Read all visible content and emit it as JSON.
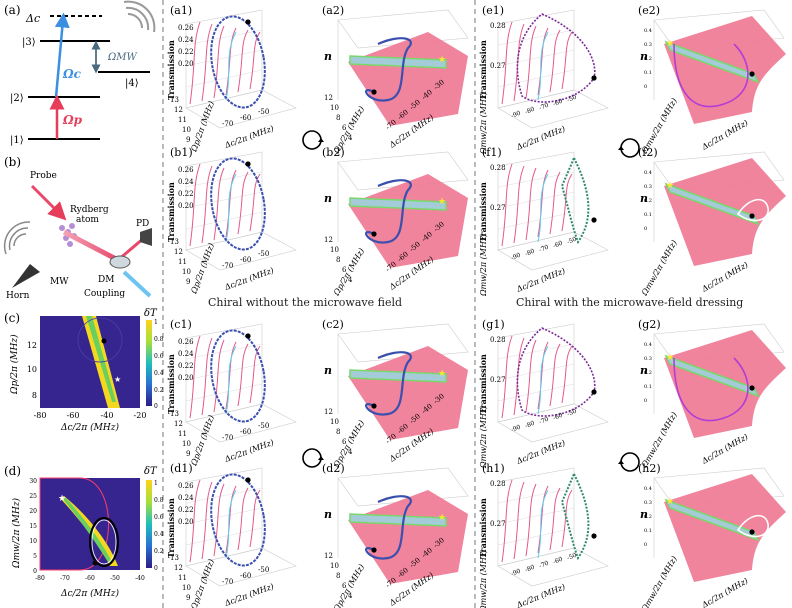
{
  "panel_labels": {
    "a": "(a)",
    "b": "(b)",
    "c": "(c)",
    "d": "(d)",
    "a1": "(a1)",
    "a2": "(a2)",
    "b1": "(b1)",
    "b2": "(b2)",
    "c1": "(c1)",
    "c2": "(c2)",
    "d1": "(d1)",
    "d2": "(d2)",
    "e1": "(e1)",
    "e2": "(e2)",
    "f1": "(f1)",
    "f2": "(f2)",
    "g1": "(g1)",
    "g2": "(g2)",
    "h1": "(h1)",
    "h2": "(h2)"
  },
  "level_diagram": {
    "levels": [
      "|1⟩",
      "|2⟩",
      "|3⟩",
      "|4⟩"
    ],
    "detuning": "Δc",
    "coupling": "Ωc",
    "probe": "Ωp",
    "microwave": "ΩMW"
  },
  "setup": {
    "probe": "Probe",
    "rydberg_line1": "Rydberg",
    "rydberg_line2": "atom",
    "pd": "PD",
    "dm": "DM",
    "mw": "MW",
    "horn": "Horn",
    "coupling": "Coupling"
  },
  "map_c": {
    "ylabel": "Ωp/2π (MHz)",
    "xlabel": "Δc/2π (MHz)",
    "yticks": [
      "12",
      "10",
      "8"
    ],
    "xticks": [
      "-80",
      "-60",
      "-40",
      "-20"
    ],
    "cbar_label": "δT",
    "cbar_ticks": [
      "1",
      "0.8",
      "0.6",
      "0.4",
      "0.2",
      "0"
    ]
  },
  "map_d": {
    "ylabel": "Ωmw/2π (MHz)",
    "xlabel": "Δc/2π (MHz)",
    "yticks": [
      "30",
      "25",
      "20",
      "15",
      "10",
      "5",
      "0"
    ],
    "xticks": [
      "-80",
      "-70",
      "-60",
      "-50",
      "-40"
    ],
    "cbar_label": "δT",
    "cbar_ticks": [
      "1",
      "0.8",
      "0.6",
      "0.4",
      "0.2",
      "0"
    ]
  },
  "left_group": {
    "ylabel1": "Transmission",
    "zticks": [
      "0.26",
      "0.24",
      "0.22",
      "0.20"
    ],
    "omega_p_ticks": [
      "13",
      "12",
      "11",
      "10",
      "9"
    ],
    "omega_p_label": "Ωp/2π (MHz)",
    "delta_ticks": [
      "-70",
      "-60",
      "-50"
    ],
    "delta_label": "Δc/2π (MHz)",
    "ylabel2": "n",
    "omega_p_ticks2": [
      "12",
      "10",
      "8",
      "6",
      "4"
    ],
    "delta_ticks2": [
      "-70",
      "-60",
      "-50",
      "-40",
      "-30"
    ]
  },
  "right_group": {
    "ylabel1": "Transmission",
    "zticks": [
      "0.28",
      "0.27"
    ],
    "omega_mw_label": "Ωmw/2π (MHz)",
    "delta_ticks": [
      "-90",
      "-80",
      "-70",
      "-60",
      "-50"
    ],
    "delta_label": "Δc/2π (MHz)",
    "ylabel2": "n",
    "n_ticks": [
      "0.4",
      "0.3",
      "0.2",
      "0.1",
      "0"
    ]
  },
  "captions": {
    "left": "Chiral without the microwave field",
    "right": "Chiral  with the microwave-field dressing"
  }
}
